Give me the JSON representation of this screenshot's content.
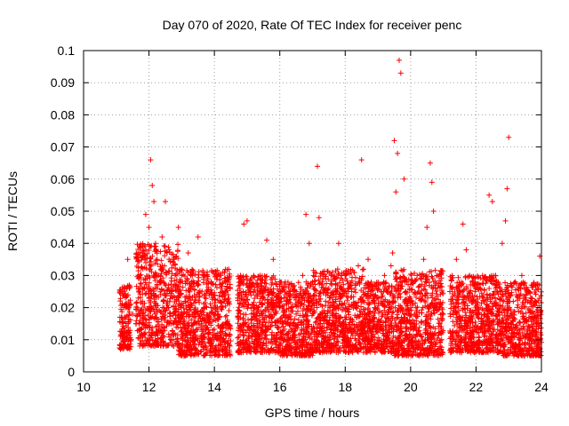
{
  "chart_data": {
    "type": "scatter",
    "title": "Day 070 of 2020, Rate Of TEC Index for receiver penc",
    "xlabel": "GPS time / hours",
    "ylabel": "ROTI / TECUs",
    "xlim": [
      10,
      24
    ],
    "ylim": [
      0,
      0.1
    ],
    "xticks": [
      "10",
      "12",
      "14",
      "16",
      "18",
      "20",
      "22",
      "24"
    ],
    "yticks": [
      "0",
      "0.01",
      "0.02",
      "0.03",
      "0.04",
      "0.05",
      "0.06",
      "0.07",
      "0.08",
      "0.09",
      "0.1"
    ],
    "grid": true,
    "marker": "plus",
    "color": "#ff0000",
    "series": [
      {
        "name": "ROTI",
        "x": [
          11.2,
          11.3,
          11.35,
          11.4,
          11.5,
          11.6,
          11.8,
          11.9,
          12.0,
          12.05,
          12.1,
          12.15,
          12.2,
          12.25,
          12.3,
          12.4,
          12.5,
          12.6,
          12.7,
          12.8,
          12.9,
          13.0,
          13.1,
          13.2,
          13.3,
          13.4,
          13.5,
          13.6,
          13.7,
          13.8,
          13.9,
          14.0,
          14.1,
          14.2,
          14.3,
          14.4,
          14.8,
          14.9,
          15.0,
          15.1,
          15.2,
          15.4,
          15.6,
          15.8,
          16.0,
          16.1,
          16.3,
          16.5,
          16.7,
          16.8,
          16.9,
          17.0,
          17.15,
          17.2,
          17.4,
          17.6,
          17.8,
          18.0,
          18.2,
          18.4,
          18.5,
          18.7,
          18.9,
          19.0,
          19.2,
          19.4,
          19.45,
          19.5,
          19.55,
          19.6,
          19.65,
          19.7,
          19.8,
          20.0,
          20.2,
          20.4,
          20.5,
          20.6,
          20.65,
          20.7,
          20.8,
          21.0,
          21.2,
          21.4,
          21.6,
          21.7,
          21.8,
          22.0,
          22.2,
          22.4,
          22.5,
          22.6,
          22.8,
          22.9,
          22.95,
          23.0,
          23.2,
          23.4,
          23.6,
          23.8,
          23.95,
          11.25,
          11.45,
          11.7,
          12.45,
          12.85,
          13.25,
          13.65,
          14.05,
          14.25,
          14.95,
          15.25,
          15.55,
          15.85,
          16.25,
          16.55,
          16.85,
          17.35,
          17.65,
          17.95,
          18.25,
          18.55,
          18.85,
          19.15,
          19.75,
          20.15,
          20.45,
          20.95,
          21.25,
          21.55,
          21.85,
          22.15,
          22.45,
          22.75,
          23.15,
          23.45,
          23.75,
          23.9
        ],
        "y": [
          0.012,
          0.02,
          0.035,
          0.026,
          0.018,
          0.015,
          0.022,
          0.049,
          0.045,
          0.066,
          0.058,
          0.053,
          0.04,
          0.035,
          0.03,
          0.042,
          0.053,
          0.02,
          0.025,
          0.03,
          0.045,
          0.032,
          0.022,
          0.037,
          0.028,
          0.018,
          0.042,
          0.015,
          0.03,
          0.025,
          0.02,
          0.018,
          0.012,
          0.03,
          0.022,
          0.015,
          0.03,
          0.046,
          0.047,
          0.025,
          0.03,
          0.03,
          0.041,
          0.035,
          0.02,
          0.015,
          0.025,
          0.018,
          0.03,
          0.049,
          0.04,
          0.028,
          0.064,
          0.048,
          0.022,
          0.018,
          0.04,
          0.03,
          0.025,
          0.033,
          0.066,
          0.035,
          0.02,
          0.026,
          0.03,
          0.033,
          0.037,
          0.072,
          0.056,
          0.068,
          0.097,
          0.093,
          0.06,
          0.02,
          0.03,
          0.035,
          0.045,
          0.065,
          0.059,
          0.05,
          0.03,
          0.018,
          0.025,
          0.035,
          0.046,
          0.038,
          0.03,
          0.022,
          0.03,
          0.055,
          0.053,
          0.03,
          0.04,
          0.047,
          0.057,
          0.073,
          0.028,
          0.03,
          0.025,
          0.022,
          0.036,
          0.008,
          0.01,
          0.013,
          0.011,
          0.009,
          0.012,
          0.01,
          0.008,
          0.014,
          0.009,
          0.011,
          0.013,
          0.01,
          0.012,
          0.009,
          0.014,
          0.01,
          0.012,
          0.011,
          0.008,
          0.013,
          0.01,
          0.012,
          0.009,
          0.011,
          0.013,
          0.01,
          0.012,
          0.009,
          0.011,
          0.013,
          0.01,
          0.012,
          0.008,
          0.011,
          0.013,
          0.01
        ],
        "clusters": [
          {
            "x": [
              11.1,
              11.45
            ],
            "y": [
              0.007,
              0.027
            ]
          },
          {
            "x": [
              11.6,
              12.9
            ],
            "y": [
              0.008,
              0.04
            ]
          },
          {
            "x": [
              12.9,
              14.5
            ],
            "y": [
              0.005,
              0.032
            ]
          },
          {
            "x": [
              14.7,
              16.0
            ],
            "y": [
              0.006,
              0.03
            ]
          },
          {
            "x": [
              16.0,
              17.0
            ],
            "y": [
              0.005,
              0.028
            ]
          },
          {
            "x": [
              17.0,
              18.6
            ],
            "y": [
              0.006,
              0.032
            ]
          },
          {
            "x": [
              18.6,
              19.5
            ],
            "y": [
              0.006,
              0.028
            ]
          },
          {
            "x": [
              19.5,
              21.0
            ],
            "y": [
              0.005,
              0.032
            ]
          },
          {
            "x": [
              21.2,
              22.7
            ],
            "y": [
              0.006,
              0.03
            ]
          },
          {
            "x": [
              22.7,
              24.0
            ],
            "y": [
              0.005,
              0.028
            ]
          }
        ]
      }
    ]
  }
}
